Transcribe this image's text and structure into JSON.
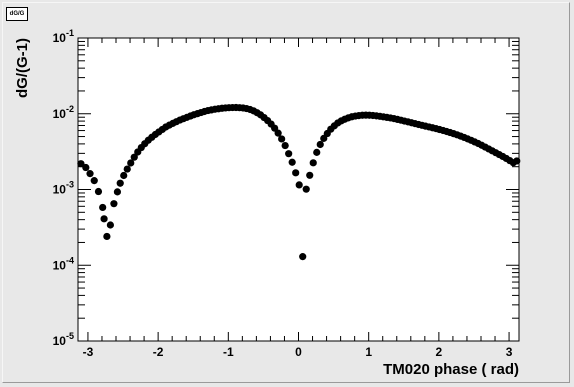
{
  "window": {
    "title_box": "dG/G"
  },
  "chart_data": {
    "type": "scatter",
    "title": "dG/G",
    "xlabel": "TM020 phase ( rad)",
    "ylabel": "dG/(G-1)",
    "xlim": [
      -3.1416,
      3.1416
    ],
    "ylim": [
      1e-05,
      0.1
    ],
    "yscale": "log",
    "grid": false,
    "x_ticks": [
      "-3",
      "-2",
      "-1",
      "0",
      "1",
      "2",
      "3"
    ],
    "y_ticks": [
      {
        "base": "10",
        "exp": "-5"
      },
      {
        "base": "10",
        "exp": "-4"
      },
      {
        "base": "10",
        "exp": "-3"
      },
      {
        "base": "10",
        "exp": "-2"
      },
      {
        "base": "10",
        "exp": "-1"
      }
    ],
    "series": [
      {
        "color": "#000000",
        "points": [
          [
            -3.1,
            0.00219
          ],
          [
            -3.03,
            0.00195
          ],
          [
            -2.97,
            0.00162
          ],
          [
            -2.91,
            0.00131
          ],
          [
            -2.85,
            0.00094
          ],
          [
            -2.79,
            0.00058
          ],
          [
            -2.77,
            0.00041
          ],
          [
            -2.73,
            0.00024
          ],
          [
            -2.68,
            0.00034
          ],
          [
            -2.63,
            0.00065
          ],
          [
            -2.58,
            0.00093
          ],
          [
            -2.54,
            0.00121
          ],
          [
            -2.49,
            0.00153
          ],
          [
            -2.44,
            0.00186
          ],
          [
            -2.39,
            0.00224
          ],
          [
            -2.34,
            0.00267
          ],
          [
            -2.29,
            0.00313
          ],
          [
            -2.24,
            0.00358
          ],
          [
            -2.19,
            0.00402
          ],
          [
            -2.14,
            0.00447
          ],
          [
            -2.09,
            0.00489
          ],
          [
            -2.04,
            0.00532
          ],
          [
            -1.99,
            0.00575
          ],
          [
            -1.94,
            0.00621
          ],
          [
            -1.89,
            0.00669
          ],
          [
            -1.84,
            0.00708
          ],
          [
            -1.79,
            0.00746
          ],
          [
            -1.74,
            0.00786
          ],
          [
            -1.69,
            0.00825
          ],
          [
            -1.64,
            0.00861
          ],
          [
            -1.59,
            0.00896
          ],
          [
            -1.54,
            0.00933
          ],
          [
            -1.49,
            0.00971
          ],
          [
            -1.44,
            0.01003
          ],
          [
            -1.39,
            0.01036
          ],
          [
            -1.34,
            0.01071
          ],
          [
            -1.29,
            0.01101
          ],
          [
            -1.24,
            0.01124
          ],
          [
            -1.19,
            0.01146
          ],
          [
            -1.14,
            0.01163
          ],
          [
            -1.09,
            0.01181
          ],
          [
            -1.04,
            0.01193
          ],
          [
            -0.99,
            0.01202
          ],
          [
            -0.94,
            0.01207
          ],
          [
            -0.89,
            0.01208
          ],
          [
            -0.84,
            0.01203
          ],
          [
            -0.79,
            0.01192
          ],
          [
            -0.74,
            0.01171
          ],
          [
            -0.69,
            0.01138
          ],
          [
            -0.64,
            0.01092
          ],
          [
            -0.59,
            0.01033
          ],
          [
            -0.54,
            0.00966
          ],
          [
            -0.49,
            0.00891
          ],
          [
            -0.44,
            0.00813
          ],
          [
            -0.39,
            0.00731
          ],
          [
            -0.34,
            0.00645
          ],
          [
            -0.29,
            0.00555
          ],
          [
            -0.24,
            0.00465
          ],
          [
            -0.19,
            0.0038
          ],
          [
            -0.14,
            0.00297
          ],
          [
            -0.09,
            0.00229
          ],
          [
            -0.04,
            0.00166
          ],
          [
            0.01,
            0.00115
          ],
          [
            0.06,
            0.00013
          ],
          [
            0.11,
            0.00101
          ],
          [
            0.16,
            0.00154
          ],
          [
            0.21,
            0.00225
          ],
          [
            0.26,
            0.00309
          ],
          [
            0.31,
            0.00393
          ],
          [
            0.36,
            0.00473
          ],
          [
            0.41,
            0.00548
          ],
          [
            0.46,
            0.00625
          ],
          [
            0.51,
            0.00692
          ],
          [
            0.56,
            0.00756
          ],
          [
            0.61,
            0.00806
          ],
          [
            0.66,
            0.00847
          ],
          [
            0.71,
            0.00883
          ],
          [
            0.76,
            0.00912
          ],
          [
            0.81,
            0.00932
          ],
          [
            0.86,
            0.00945
          ],
          [
            0.91,
            0.00955
          ],
          [
            0.96,
            0.00958
          ],
          [
            1.01,
            0.00955
          ],
          [
            1.06,
            0.00948
          ],
          [
            1.11,
            0.00938
          ],
          [
            1.16,
            0.00925
          ],
          [
            1.21,
            0.00911
          ],
          [
            1.26,
            0.00895
          ],
          [
            1.31,
            0.0088
          ],
          [
            1.36,
            0.00862
          ],
          [
            1.41,
            0.00842
          ],
          [
            1.46,
            0.00822
          ],
          [
            1.51,
            0.00801
          ],
          [
            1.56,
            0.00781
          ],
          [
            1.61,
            0.00761
          ],
          [
            1.66,
            0.00741
          ],
          [
            1.71,
            0.00722
          ],
          [
            1.76,
            0.00704
          ],
          [
            1.81,
            0.00686
          ],
          [
            1.86,
            0.0067
          ],
          [
            1.91,
            0.00653
          ],
          [
            1.96,
            0.00636
          ],
          [
            2.01,
            0.00619
          ],
          [
            2.06,
            0.00601
          ],
          [
            2.11,
            0.00583
          ],
          [
            2.16,
            0.00565
          ],
          [
            2.21,
            0.00546
          ],
          [
            2.26,
            0.00527
          ],
          [
            2.31,
            0.00507
          ],
          [
            2.36,
            0.00487
          ],
          [
            2.41,
            0.00466
          ],
          [
            2.46,
            0.00446
          ],
          [
            2.51,
            0.00425
          ],
          [
            2.56,
            0.00405
          ],
          [
            2.61,
            0.00384
          ],
          [
            2.66,
            0.00363
          ],
          [
            2.71,
            0.00343
          ],
          [
            2.76,
            0.00324
          ],
          [
            2.81,
            0.00306
          ],
          [
            2.86,
            0.00289
          ],
          [
            2.91,
            0.00273
          ],
          [
            2.96,
            0.00257
          ],
          [
            3.01,
            0.00241
          ],
          [
            3.06,
            0.00226
          ],
          [
            3.11,
            0.00238
          ]
        ]
      }
    ]
  }
}
